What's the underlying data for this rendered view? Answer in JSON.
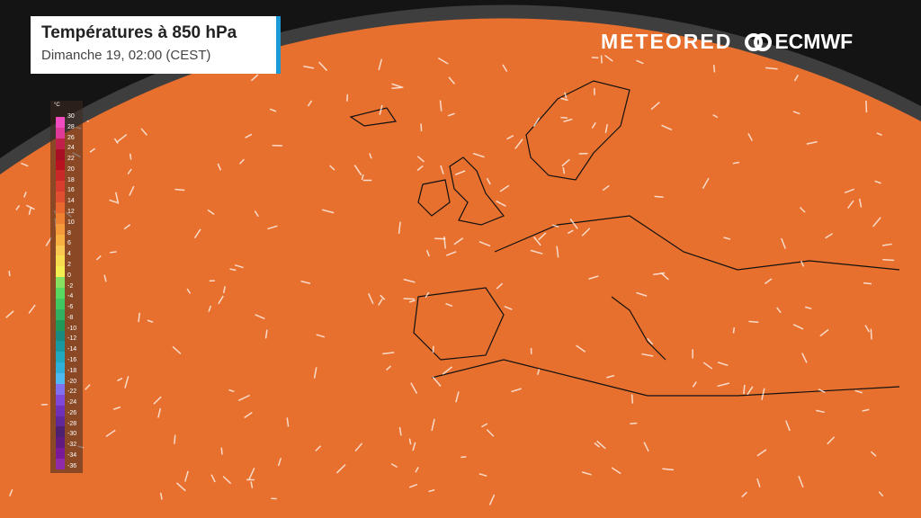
{
  "header": {
    "title": "Températures à 850 hPa",
    "subtitle": "Dimanche 19, 02:00 (CEST)"
  },
  "logos": {
    "meteored": "METEORED",
    "ecmwf": "ECMWF"
  },
  "legend": {
    "unit": "°C",
    "labels": [
      "30",
      "28",
      "26",
      "24",
      "22",
      "20",
      "18",
      "16",
      "14",
      "12",
      "10",
      "8",
      "6",
      "4",
      "2",
      "0",
      "-2",
      "-4",
      "-6",
      "-8",
      "-10",
      "-12",
      "-14",
      "-16",
      "-18",
      "-20",
      "-22",
      "-24",
      "-26",
      "-28",
      "-30",
      "-32",
      "-34",
      "-36"
    ],
    "colors": [
      "#f04cc0",
      "#e03a98",
      "#c0204a",
      "#a80e24",
      "#b81220",
      "#c82828",
      "#d83c2c",
      "#e05030",
      "#e8682e",
      "#ee8232",
      "#f49a3a",
      "#f8b040",
      "#fac850",
      "#f8dc50",
      "#f4ee50",
      "#88e060",
      "#58d860",
      "#40c860",
      "#30b060",
      "#209858",
      "#188a80",
      "#1898a0",
      "#20a8c0",
      "#30b0d8",
      "#50b8f0",
      "#8070f0",
      "#8048d8",
      "#7030b8",
      "#602898",
      "#502070",
      "#601a80",
      "#7a1a98",
      "#902aa8"
    ]
  },
  "colors": {
    "cold": "#1a9a8a",
    "mild": "#2ecc5c",
    "warm": "#f4c74a",
    "hot": "#e85c2c",
    "very_hot": "#b81a1a",
    "accent": "#1a9ad6"
  }
}
